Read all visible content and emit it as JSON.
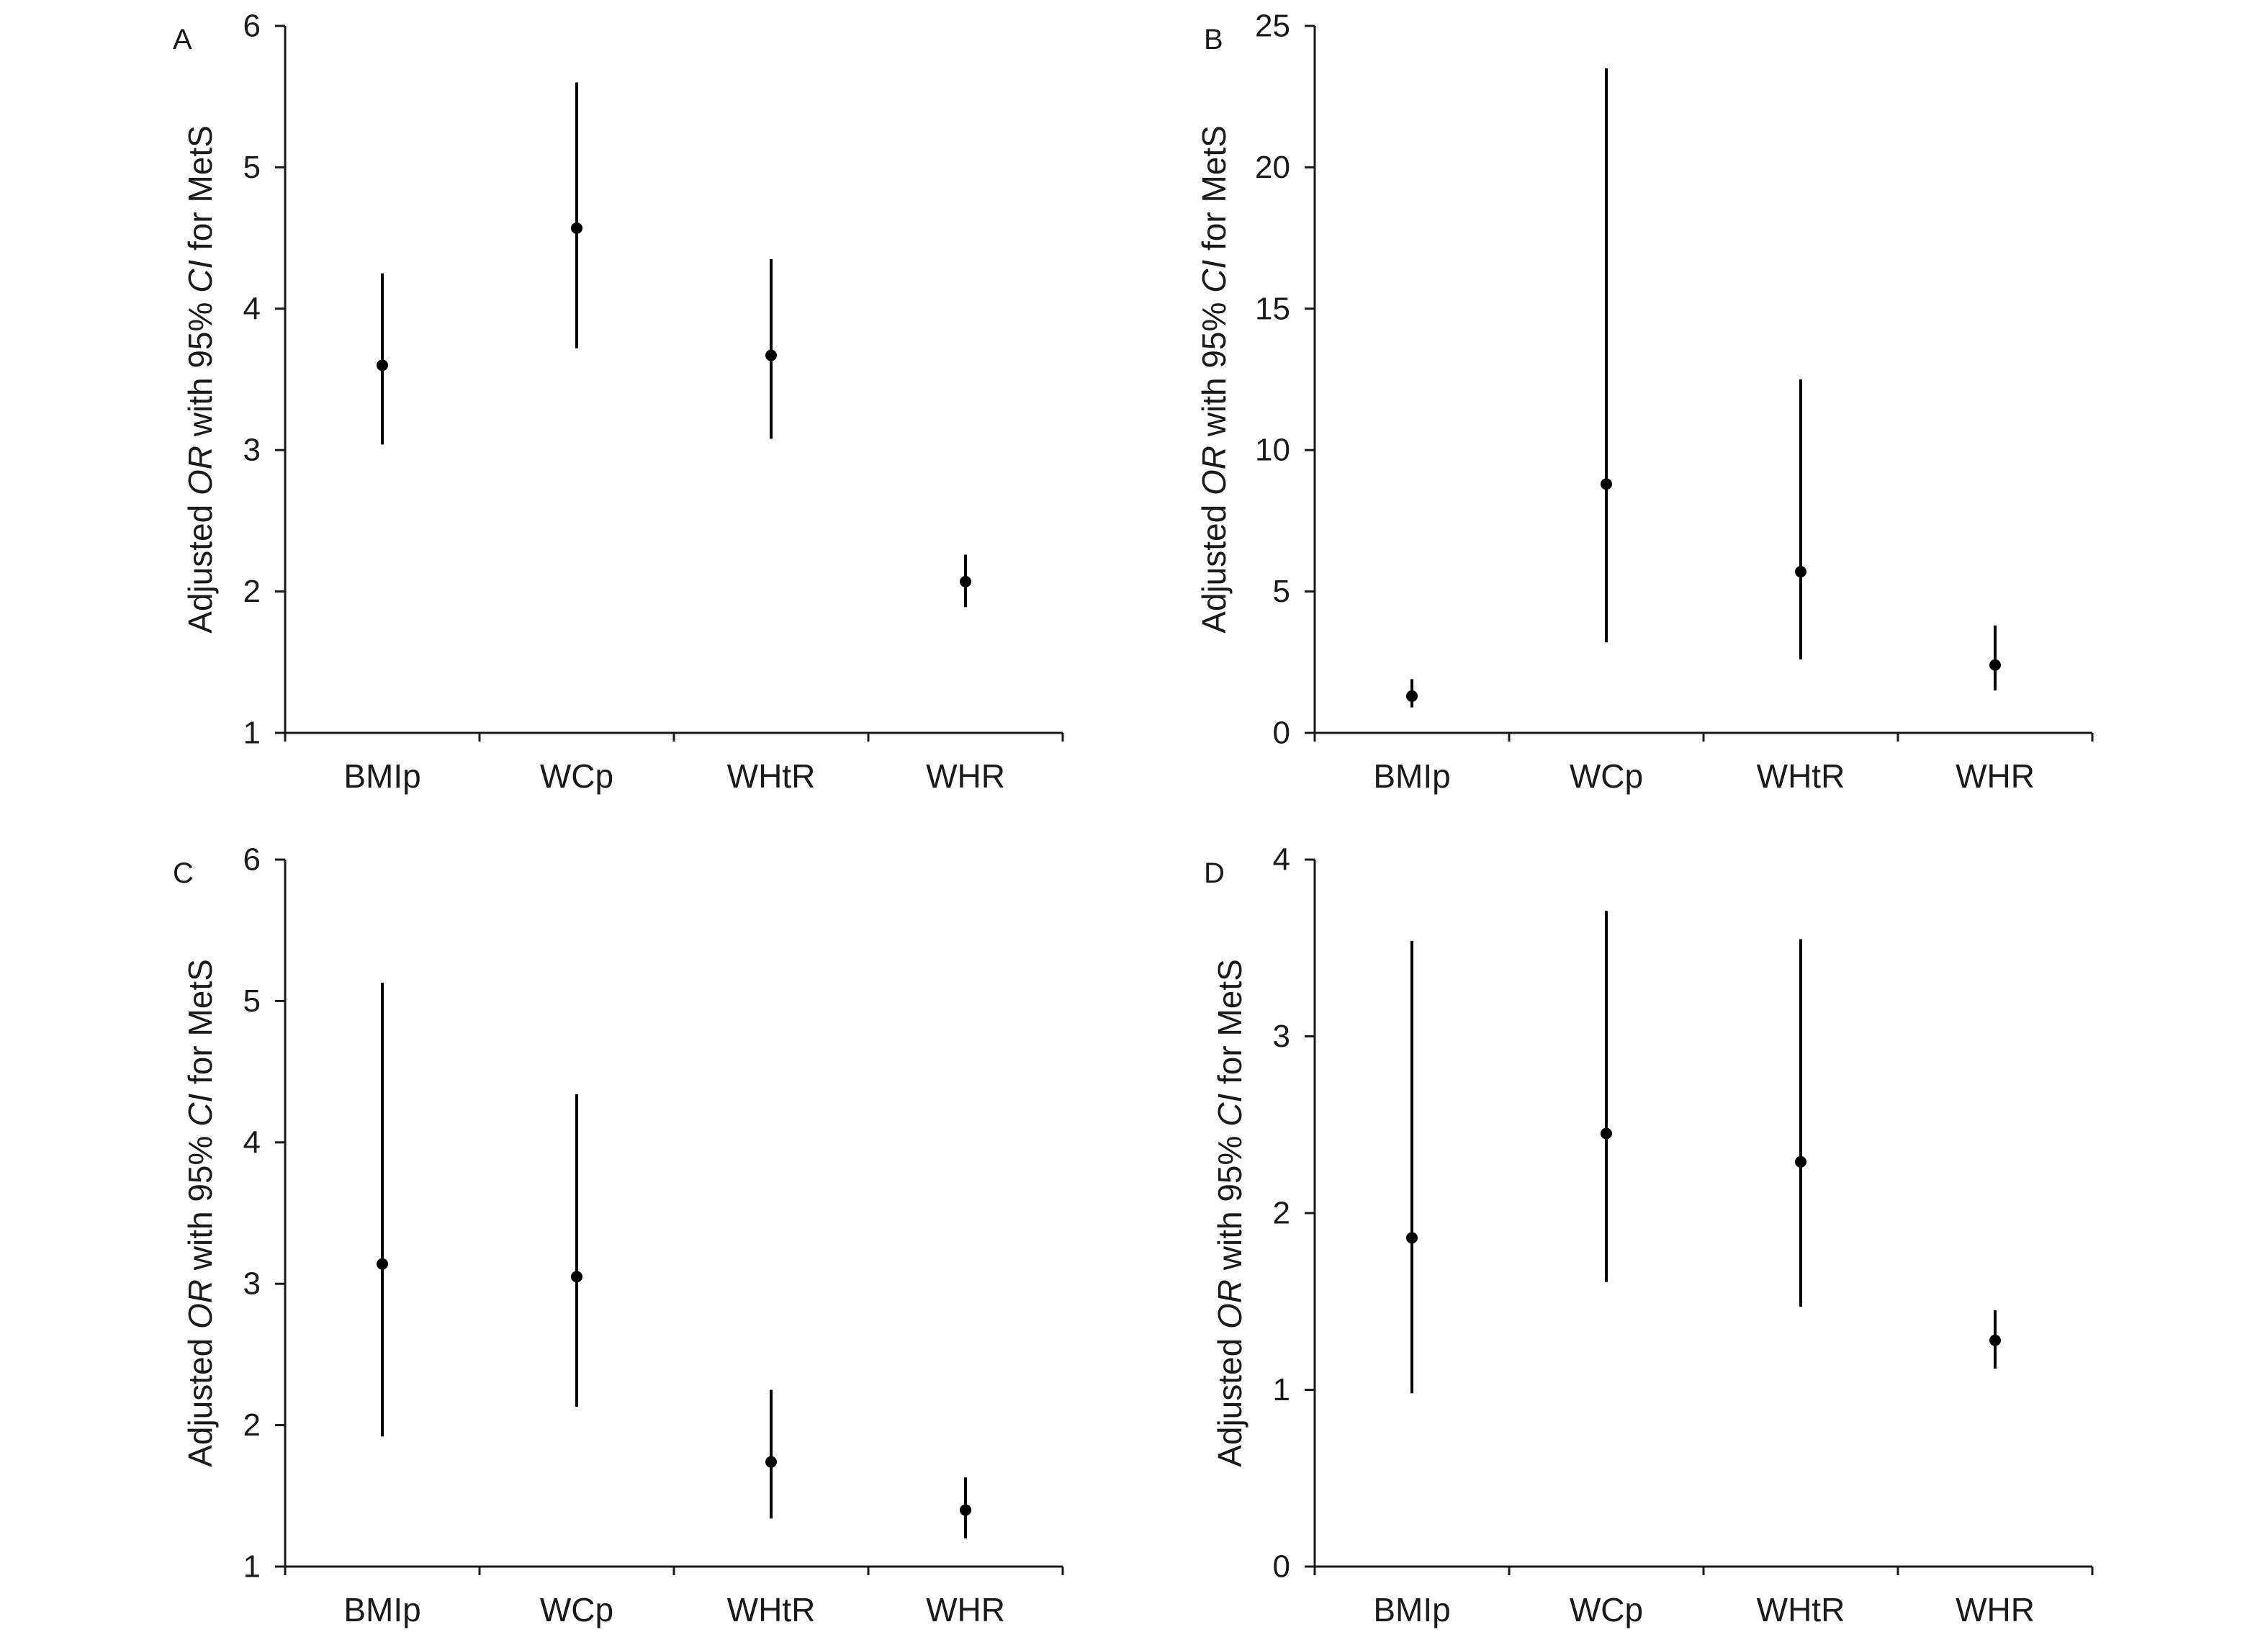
{
  "chart_data": [
    {
      "type": "errorbar",
      "panel": "A",
      "ylabel": [
        "Adjusted ",
        "OR",
        " with 95% ",
        "CI",
        " for MetS"
      ],
      "ylim": [
        1,
        6
      ],
      "yticks": [
        "1",
        "2",
        "3",
        "4",
        "5",
        "6"
      ],
      "categories": [
        "BMIp",
        "WCp",
        "WHtR",
        "WHR"
      ],
      "estimates": [
        3.6,
        4.57,
        3.67,
        2.07
      ],
      "lower": [
        3.04,
        3.72,
        3.08,
        1.89
      ],
      "upper": [
        4.25,
        5.6,
        4.35,
        2.26
      ]
    },
    {
      "type": "errorbar",
      "panel": "B",
      "ylabel": [
        "Adjusted ",
        "OR",
        " with 95% ",
        "CI",
        " for MetS"
      ],
      "ylim": [
        0,
        25
      ],
      "yticks": [
        "0",
        "5",
        "10",
        "15",
        "20",
        "25"
      ],
      "categories": [
        "BMIp",
        "WCp",
        "WHtR",
        "WHR"
      ],
      "estimates": [
        1.3,
        8.8,
        5.7,
        2.4
      ],
      "lower": [
        0.9,
        3.2,
        2.6,
        1.5
      ],
      "upper": [
        1.9,
        23.5,
        12.5,
        3.8
      ]
    },
    {
      "type": "errorbar",
      "panel": "C",
      "ylabel": [
        "Adjusted ",
        "OR",
        " with 95% ",
        "CI",
        " for MetS"
      ],
      "ylim": [
        1,
        6
      ],
      "yticks": [
        "1",
        "2",
        "3",
        "4",
        "5",
        "6"
      ],
      "categories": [
        "BMIp",
        "WCp",
        "WHtR",
        "WHR"
      ],
      "estimates": [
        3.14,
        3.05,
        1.74,
        1.4
      ],
      "lower": [
        1.92,
        2.13,
        1.34,
        1.2
      ],
      "upper": [
        5.13,
        4.34,
        2.25,
        1.63
      ]
    },
    {
      "type": "errorbar",
      "panel": "D",
      "ylabel": [
        "Adjusted ",
        "OR",
        " with 95% ",
        "CI",
        " for MetS"
      ],
      "ylim": [
        0,
        4
      ],
      "yticks": [
        "0",
        "1",
        "2",
        "3",
        "4"
      ],
      "categories": [
        "BMIp",
        "WCp",
        "WHtR",
        "WHR"
      ],
      "estimates": [
        1.86,
        2.45,
        2.29,
        1.28
      ],
      "lower": [
        0.98,
        1.61,
        1.47,
        1.12
      ],
      "upper": [
        3.54,
        3.71,
        3.55,
        1.45
      ]
    }
  ]
}
